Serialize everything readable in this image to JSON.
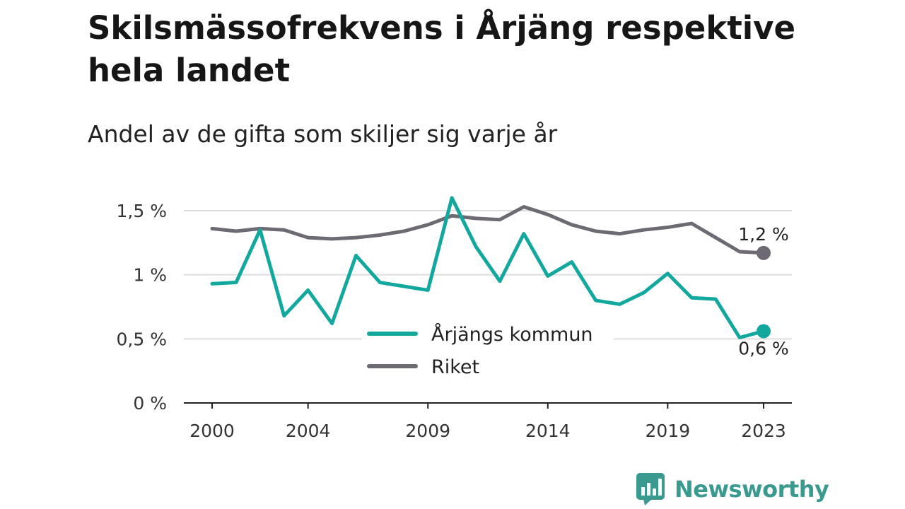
{
  "chart_data": {
    "type": "line",
    "title": "Skilsmässofrekvens i Årjäng respektive hela landet",
    "subtitle": "Andel av de gifta som skiljer sig varje år",
    "x": [
      2000,
      2001,
      2002,
      2003,
      2004,
      2005,
      2006,
      2007,
      2008,
      2009,
      2010,
      2011,
      2012,
      2013,
      2014,
      2015,
      2016,
      2017,
      2018,
      2019,
      2020,
      2021,
      2022,
      2023
    ],
    "x_ticks": [
      2000,
      2004,
      2009,
      2014,
      2019,
      2023
    ],
    "x_tick_labels": [
      "2000",
      "2004",
      "2009",
      "2014",
      "2019",
      "2023"
    ],
    "y_ticks": [
      0,
      0.5,
      1,
      1.5
    ],
    "y_tick_labels": [
      "0 %",
      "0,5 %",
      "1 %",
      "1,5 %"
    ],
    "ylim": [
      0,
      1.5
    ],
    "grid": true,
    "legend_position": "bottom-center",
    "series": [
      {
        "name": "Årjängs kommun",
        "color": "#13a89e",
        "values": [
          0.93,
          0.94,
          1.35,
          0.68,
          0.88,
          0.62,
          1.15,
          0.94,
          0.91,
          0.88,
          1.6,
          1.22,
          0.95,
          1.32,
          0.99,
          1.1,
          0.8,
          0.77,
          0.86,
          1.01,
          0.82,
          0.81,
          0.51,
          0.56
        ],
        "end_label": "0,6 %"
      },
      {
        "name": "Riket",
        "color": "#6d6a73",
        "values": [
          1.36,
          1.34,
          1.36,
          1.35,
          1.29,
          1.28,
          1.29,
          1.31,
          1.34,
          1.39,
          1.46,
          1.44,
          1.43,
          1.53,
          1.47,
          1.39,
          1.34,
          1.32,
          1.35,
          1.37,
          1.4,
          1.29,
          1.18,
          1.17
        ],
        "end_label": "1,2 %"
      }
    ]
  },
  "branding": {
    "logo_text": "Newsworthy",
    "logo_color": "#3a9a8f",
    "logo_icon": "bar-chart-speech-bubble-icon"
  }
}
